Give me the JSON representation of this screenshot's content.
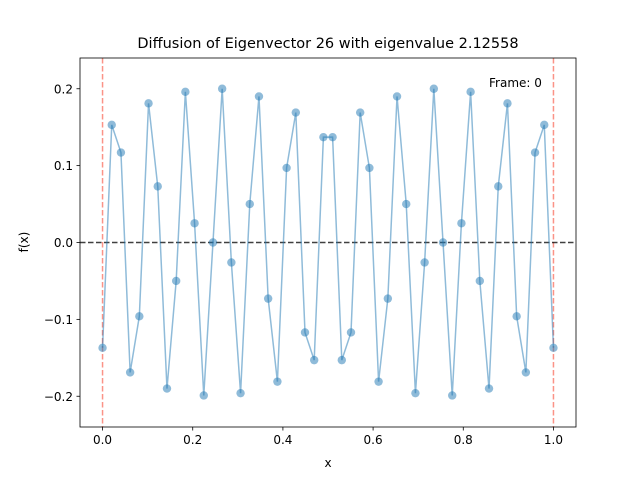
{
  "chart_data": {
    "type": "line",
    "title": "Diffusion of Eigenvector 26 with eigenvalue 2.12558",
    "xlabel": "x",
    "ylabel": "f(x)",
    "annotation": "Frame: 0",
    "xlim": [
      -0.05,
      1.05
    ],
    "ylim": [
      -0.24,
      0.24
    ],
    "xticks": [
      0.0,
      0.2,
      0.4,
      0.6,
      0.8,
      1.0
    ],
    "xtick_labels": [
      "0.0",
      "0.2",
      "0.4",
      "0.6",
      "0.8",
      "1.0"
    ],
    "yticks": [
      -0.2,
      -0.1,
      0.0,
      0.1,
      0.2
    ],
    "ytick_labels": [
      "−0.2",
      "−0.1",
      "0.0",
      "0.1",
      "0.2"
    ],
    "grid": false,
    "legend": "none",
    "reference_lines": [
      {
        "orientation": "vertical",
        "value": 0.0,
        "style": "dashed",
        "color": "#fa8072"
      },
      {
        "orientation": "vertical",
        "value": 1.0,
        "style": "dashed",
        "color": "#fa8072"
      },
      {
        "orientation": "horizontal",
        "value": 0.0,
        "style": "dashed",
        "color": "#000000"
      }
    ],
    "series": [
      {
        "color": "#1f77b4",
        "marker": "circle",
        "x": [
          0.0,
          0.0204,
          0.0408,
          0.0612,
          0.0816,
          0.102,
          0.1224,
          0.1429,
          0.1633,
          0.1837,
          0.2041,
          0.2245,
          0.2449,
          0.2653,
          0.2857,
          0.3061,
          0.3265,
          0.3469,
          0.3673,
          0.3878,
          0.4082,
          0.4286,
          0.449,
          0.4694,
          0.4898,
          0.5102,
          0.5306,
          0.551,
          0.5714,
          0.5918,
          0.6122,
          0.6327,
          0.6531,
          0.6735,
          0.6939,
          0.7143,
          0.7347,
          0.7551,
          0.7755,
          0.7959,
          0.8163,
          0.8367,
          0.8571,
          0.8776,
          0.898,
          0.9184,
          0.9388,
          0.9592,
          0.9796,
          1.0
        ],
        "y": [
          -0.137,
          0.153,
          0.117,
          -0.169,
          -0.096,
          0.181,
          0.073,
          -0.19,
          -0.05,
          0.196,
          0.025,
          -0.199,
          0.0,
          0.2,
          -0.026,
          -0.196,
          0.05,
          0.19,
          -0.073,
          -0.181,
          0.097,
          0.169,
          -0.117,
          -0.153,
          0.137,
          0.137,
          -0.153,
          -0.117,
          0.169,
          0.097,
          -0.181,
          -0.073,
          0.19,
          0.05,
          -0.196,
          -0.026,
          0.2,
          0.0,
          -0.199,
          0.025,
          0.196,
          -0.05,
          -0.19,
          0.073,
          0.181,
          -0.096,
          -0.169,
          0.117,
          0.153,
          -0.137
        ]
      }
    ]
  }
}
